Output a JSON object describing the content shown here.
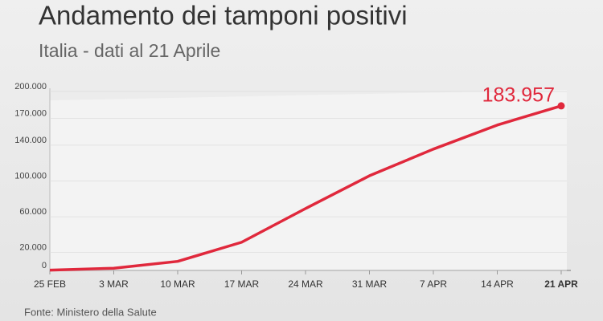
{
  "chart_data": {
    "type": "line",
    "title": "Andamento dei tamponi positivi",
    "subtitle": "Italia - dati al 21 Aprile",
    "source": "Fonte: Ministero della Salute",
    "categories": [
      "25 FEB",
      "3 MAR",
      "10 MAR",
      "17 MAR",
      "24 MAR",
      "31 MAR",
      "7 APR",
      "14 APR",
      "21 APR"
    ],
    "series": [
      {
        "color": "#e0283c",
        "values": [
          322,
          2502,
          10149,
          31506,
          69176,
          105792,
          135586,
          162488,
          183957
        ],
        "value_labels": [
          null,
          null,
          null,
          null,
          null,
          null,
          null,
          null,
          "183.957"
        ]
      }
    ],
    "ylim": [
      0,
      200000
    ],
    "yticks": [
      0,
      {
        "value": 20000,
        "label": "20.000"
      },
      {
        "value": 60000,
        "label": "60.000"
      },
      {
        "value": 100000,
        "label": "100.000"
      },
      {
        "value": 140000,
        "label": "140.000"
      },
      {
        "value": 170000,
        "label": "170.000"
      },
      {
        "value": 200000,
        "label": "200.000"
      }
    ],
    "grid": true
  }
}
